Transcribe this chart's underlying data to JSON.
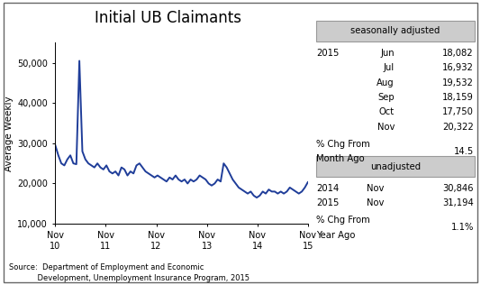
{
  "title": "Initial UB Claimants",
  "ylabel": "Average Weekly",
  "ylim": [
    10000,
    55000
  ],
  "yticks": [
    10000,
    20000,
    30000,
    40000,
    50000
  ],
  "ytick_labels": [
    "10,000",
    "20,000",
    "30,000",
    "40,000",
    "50,000"
  ],
  "xtick_labels": [
    "Nov\n10",
    "Nov\n11",
    "Nov\n12",
    "Nov\n13",
    "Nov\n14",
    "Nov\n15"
  ],
  "line_color": "#1f3d99",
  "line_width": 1.4,
  "background_color": "#ffffff",
  "seasonally_adjusted_label": "seasonally adjusted",
  "unadjusted_label": "unadjusted",
  "sa_year": "2015",
  "sa_data": [
    [
      "Jun",
      "18,082"
    ],
    [
      "Jul",
      "16,932"
    ],
    [
      "Aug",
      "19,532"
    ],
    [
      "Sep",
      "18,159"
    ],
    [
      "Oct",
      "17,750"
    ],
    [
      "Nov",
      "20,322"
    ]
  ],
  "sa_pct_chg_value": "14.5",
  "ua_data": [
    [
      "2014",
      "Nov",
      "30,846"
    ],
    [
      "2015",
      "Nov",
      "31,194"
    ]
  ],
  "ua_pct_chg_value": "1.1%",
  "source_line1": "Source:  Department of Employment and Economic",
  "source_line2": "            Development, Unemployment Insurance Program, 2015",
  "y_values": [
    29500,
    27000,
    25000,
    24500,
    26000,
    27000,
    25000,
    24800,
    50500,
    28000,
    26000,
    25000,
    24500,
    24000,
    25000,
    24000,
    23500,
    24500,
    23000,
    22500,
    23000,
    22000,
    24000,
    23500,
    22000,
    23000,
    22500,
    24500,
    25000,
    24000,
    23000,
    22500,
    22000,
    21500,
    22000,
    21500,
    21000,
    20500,
    21500,
    21000,
    22000,
    21000,
    20500,
    21000,
    20000,
    21000,
    20500,
    21000,
    22000,
    21500,
    21000,
    20000,
    19500,
    20000,
    21000,
    20500,
    25000,
    24000,
    22500,
    21000,
    20000,
    19000,
    18500,
    18000,
    17500,
    18000,
    17000,
    16500,
    17000,
    18000,
    17500,
    18500,
    18000,
    18000,
    17500,
    18000,
    17500,
    18000,
    19000,
    18500,
    18000,
    17500,
    18000,
    19000,
    20322
  ]
}
